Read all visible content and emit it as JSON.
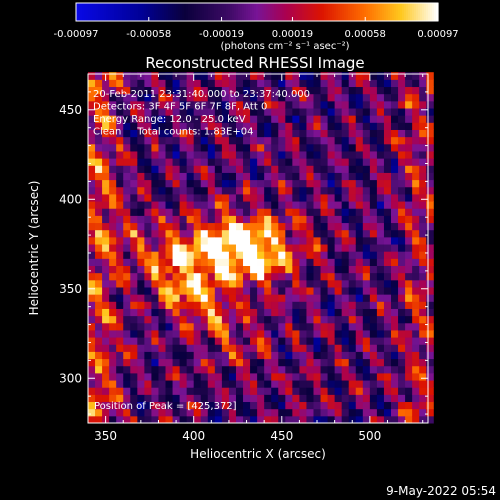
{
  "chart_data": {
    "type": "heatmap",
    "title": "Reconstructed RHESSI Image",
    "xlabel": "Heliocentric X (arcsec)",
    "ylabel": "Heliocentric Y (arcsec)",
    "xlim": [
      340,
      533
    ],
    "ylim": [
      275,
      470
    ],
    "x_ticks": [
      350,
      400,
      450,
      500
    ],
    "y_ticks": [
      300,
      350,
      400,
      450
    ],
    "x_tick_labels": [
      "350",
      "400",
      "450",
      "500"
    ],
    "y_tick_labels": [
      "300",
      "350",
      "400",
      "450"
    ],
    "colorbar": {
      "range": [
        -0.00097,
        0.00097
      ],
      "ticks": [
        -0.00097,
        -0.00058,
        -0.00019,
        0.00019,
        0.00058,
        0.00097
      ],
      "tick_labels": [
        "-0.00097",
        "-0.00058",
        "-0.00019",
        "0.00019",
        "0.00058",
        "0.00097"
      ],
      "units": "(photons cm⁻² s⁻¹ asec⁻²)"
    },
    "annotations": [
      "20-Feb-2011 23:31:40.000 to 23:37:40.000",
      "Detectors: 3F 4F 5F 6F 7F 8F, Att 0",
      "Energy Range: 12.0 - 25.0 keV",
      "Clean     Total counts: 1.83E+04"
    ],
    "peak_label": "Position of Peak = [425,372]",
    "peak": [
      425,
      372
    ],
    "footer_date": "9-May-2022 05:54"
  }
}
